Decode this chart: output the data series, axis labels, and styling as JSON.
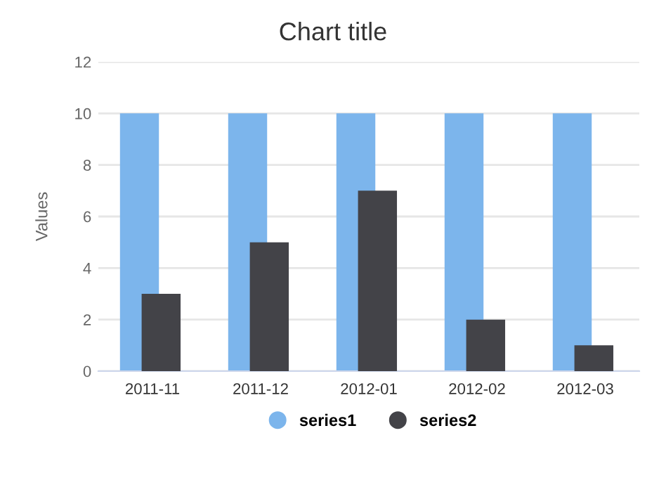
{
  "chart_data": {
    "type": "bar",
    "title": "Chart title",
    "ylabel": "Values",
    "categories": [
      "2011-11",
      "2011-12",
      "2012-01",
      "2012-02",
      "2012-03"
    ],
    "series": [
      {
        "name": "series1",
        "color": "#7cb5ec",
        "values": [
          10,
          10,
          10,
          10,
          10
        ]
      },
      {
        "name": "series2",
        "color": "#434348",
        "values": [
          3,
          5,
          7,
          2,
          1
        ]
      }
    ],
    "ylim": [
      0,
      12
    ],
    "yticks": [
      0,
      2,
      4,
      6,
      8,
      10,
      12
    ],
    "grid": "y",
    "legend": "bottom"
  }
}
